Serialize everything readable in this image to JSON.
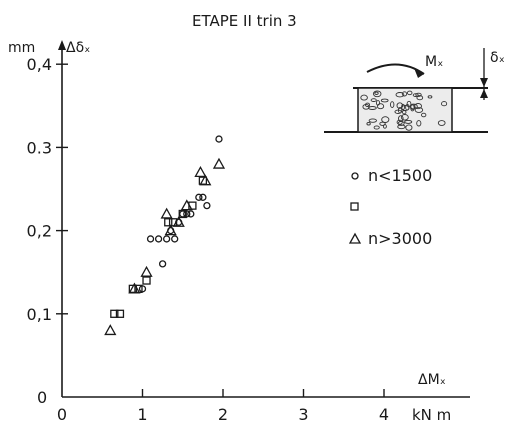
{
  "chart_data": {
    "type": "scatter",
    "title": "ETAPE II trin 3",
    "xlabel": "ΔMₓ",
    "xunit": "kN m",
    "ylabel": "Δδₓ",
    "yunit": "mm",
    "xlim": [
      0,
      4.3
    ],
    "ylim": [
      0,
      0.42
    ],
    "xticks": [
      0,
      1,
      2,
      3,
      4
    ],
    "yticks": [
      0.1,
      0.2,
      0.3,
      0.4
    ],
    "xtick_labels": [
      "0",
      "1",
      "2",
      "3",
      "4"
    ],
    "ytick_labels": [
      "0,1",
      "0,2",
      "0.3",
      "0,4"
    ],
    "origin_label": "0",
    "grid": false,
    "legend_position": "right",
    "series": [
      {
        "name": "n<1500",
        "marker": "circle",
        "x": [
          1.0,
          1.1,
          1.2,
          1.25,
          1.3,
          1.35,
          1.4,
          1.45,
          1.5,
          1.55,
          1.6,
          1.7,
          1.75,
          1.8,
          1.95
        ],
        "y": [
          0.13,
          0.19,
          0.19,
          0.16,
          0.19,
          0.2,
          0.19,
          0.21,
          0.22,
          0.22,
          0.22,
          0.24,
          0.24,
          0.23,
          0.31
        ]
      },
      {
        "name": "",
        "marker": "square",
        "x": [
          0.65,
          0.72,
          0.88,
          0.95,
          1.05,
          1.32,
          1.38,
          1.5,
          1.62,
          1.75
        ],
        "y": [
          0.1,
          0.1,
          0.13,
          0.13,
          0.14,
          0.21,
          0.21,
          0.22,
          0.23,
          0.26
        ]
      },
      {
        "name": "n>3000",
        "marker": "triangle",
        "x": [
          0.6,
          0.9,
          1.05,
          1.3,
          1.35,
          1.45,
          1.55,
          1.72,
          1.78,
          1.95
        ],
        "y": [
          0.08,
          0.13,
          0.15,
          0.22,
          0.2,
          0.21,
          0.23,
          0.27,
          0.26,
          0.28
        ]
      }
    ],
    "diagram_labels": {
      "moment": "Mₓ",
      "displacement": "δₓ"
    }
  }
}
